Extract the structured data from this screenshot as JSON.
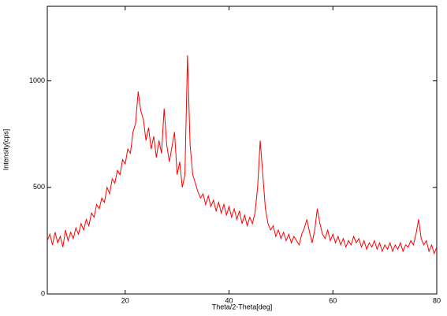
{
  "chart_data": {
    "type": "line",
    "xlabel": "Theta/2-Theta[deg]",
    "ylabel": "Intensity[cps]",
    "xlim": [
      5,
      80
    ],
    "ylim": [
      0,
      1350
    ],
    "xticks": [
      20,
      40,
      60,
      80
    ],
    "yticks": [
      0,
      500,
      1000
    ],
    "x": [
      5,
      5.5,
      6,
      6.5,
      7,
      7.5,
      8,
      8.5,
      9,
      9.5,
      10,
      10.5,
      11,
      11.5,
      12,
      12.5,
      13,
      13.5,
      14,
      14.5,
      15,
      15.5,
      16,
      16.5,
      17,
      17.5,
      18,
      18.5,
      19,
      19.5,
      20,
      20.5,
      21,
      21.5,
      22,
      22.5,
      23,
      23.5,
      24,
      24.5,
      25,
      25.5,
      26,
      26.5,
      27,
      27.5,
      28,
      28.5,
      29,
      29.5,
      30,
      30.5,
      31,
      31.5,
      32,
      32.5,
      33,
      33.5,
      34,
      34.5,
      35,
      35.5,
      36,
      36.5,
      37,
      37.5,
      38,
      38.5,
      39,
      39.5,
      40,
      40.5,
      41,
      41.5,
      42,
      42.5,
      43,
      43.5,
      44,
      44.5,
      45,
      45.5,
      46,
      46.5,
      47,
      47.5,
      48,
      48.5,
      49,
      49.5,
      50,
      50.5,
      51,
      51.5,
      52,
      52.5,
      53,
      53.5,
      54,
      54.5,
      55,
      55.5,
      56,
      56.5,
      57,
      57.5,
      58,
      58.5,
      59,
      59.5,
      60,
      60.5,
      61,
      61.5,
      62,
      62.5,
      63,
      63.5,
      64,
      64.5,
      65,
      65.5,
      66,
      66.5,
      67,
      67.5,
      68,
      68.5,
      69,
      69.5,
      70,
      70.5,
      71,
      71.5,
      72,
      72.5,
      73,
      73.5,
      74,
      74.5,
      75,
      75.5,
      76,
      76.5,
      77,
      77.5,
      78,
      78.5,
      79,
      79.5,
      80
    ],
    "series": [
      {
        "color": "#ff0000",
        "values": [
          250,
          280,
          230,
          290,
          240,
          270,
          220,
          300,
          250,
          290,
          260,
          310,
          280,
          330,
          300,
          350,
          320,
          380,
          360,
          420,
          400,
          450,
          430,
          500,
          470,
          540,
          520,
          580,
          560,
          630,
          610,
          680,
          660,
          760,
          800,
          950,
          860,
          820,
          720,
          780,
          680,
          740,
          640,
          720,
          660,
          870,
          700,
          620,
          690,
          760,
          560,
          620,
          500,
          560,
          1120,
          700,
          560,
          520,
          480,
          450,
          470,
          420,
          460,
          410,
          440,
          390,
          430,
          380,
          420,
          370,
          410,
          360,
          400,
          350,
          390,
          330,
          370,
          320,
          360,
          330,
          380,
          500,
          720,
          560,
          400,
          330,
          300,
          320,
          270,
          300,
          260,
          290,
          250,
          280,
          240,
          270,
          250,
          230,
          280,
          310,
          350,
          290,
          240,
          300,
          400,
          330,
          280,
          260,
          300,
          250,
          280,
          240,
          270,
          230,
          260,
          220,
          250,
          230,
          270,
          240,
          260,
          220,
          250,
          210,
          240,
          220,
          250,
          210,
          240,
          200,
          230,
          210,
          240,
          200,
          230,
          210,
          240,
          200,
          230,
          220,
          250,
          230,
          280,
          350,
          260,
          230,
          250,
          200,
          230,
          190,
          220
        ]
      }
    ]
  }
}
